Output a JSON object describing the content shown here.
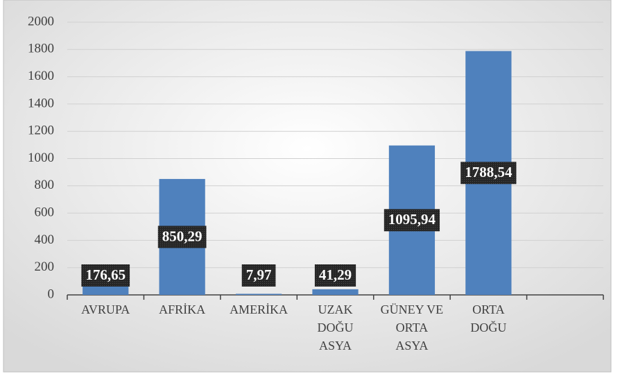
{
  "chart_data": {
    "type": "bar",
    "categories": [
      "AVRUPA",
      "AFRİKA",
      "AMERİKA",
      "UZAK DOĞU ASYA",
      "GÜNEY VE ORTA ASYA",
      "ORTA DOĞU",
      null
    ],
    "values": [
      176.65,
      850.29,
      7.97,
      41.29,
      1095.94,
      1788.54,
      null
    ],
    "value_labels": [
      "176,65",
      "850,29",
      "7,97",
      "41,29",
      "1095,94",
      "1788,54",
      null
    ],
    "color": "#4f81bd",
    "ylim": [
      0,
      2000
    ],
    "yticks": [
      0,
      200,
      400,
      600,
      800,
      1000,
      1200,
      1400,
      1600,
      1800,
      2000
    ],
    "grid": true
  }
}
